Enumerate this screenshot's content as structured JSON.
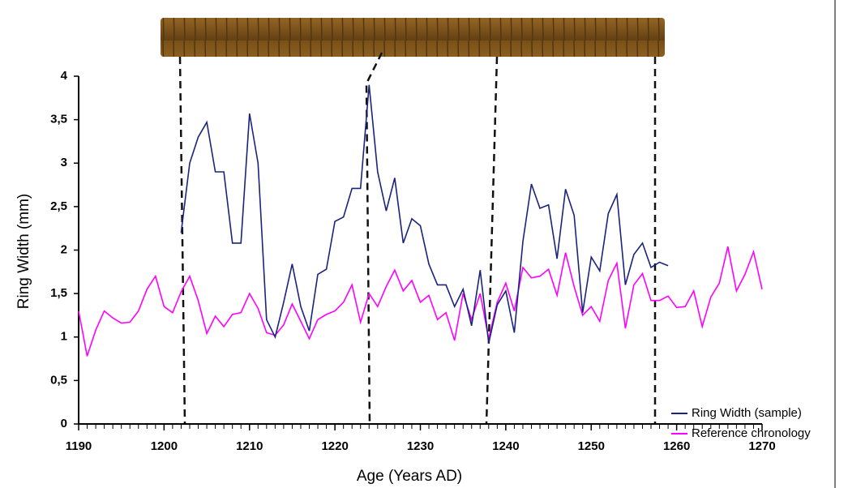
{
  "chart_data": {
    "type": "line",
    "y_label": "Ring Width (mm)",
    "x_label": "Age (Years AD)",
    "xlim": [
      1190,
      1270
    ],
    "xticks": [
      1190,
      1200,
      1210,
      1220,
      1230,
      1240,
      1250,
      1260,
      1270
    ],
    "ylim": [
      0,
      4
    ],
    "yticks": [
      0,
      {
        "value": 0.5,
        "label": "0,5"
      },
      1,
      {
        "value": 1.5,
        "label": "1,5"
      },
      2,
      {
        "value": 2.5,
        "label": "2,5"
      },
      3,
      {
        "value": 3.5,
        "label": "3,5"
      },
      4
    ],
    "legend": "lower right",
    "series": [
      {
        "name": "Ring Width (sample)",
        "color": "#1a237e",
        "x": [
          1202,
          1203,
          1204,
          1205,
          1206,
          1207,
          1208,
          1209,
          1210,
          1211,
          1212,
          1213,
          1214,
          1215,
          1216,
          1217,
          1218,
          1219,
          1220,
          1221,
          1222,
          1223,
          1224,
          1225,
          1226,
          1227,
          1228,
          1229,
          1230,
          1231,
          1232,
          1233,
          1234,
          1235,
          1236,
          1237,
          1238,
          1239,
          1240,
          1241,
          1242,
          1243,
          1244,
          1245,
          1246,
          1247,
          1248,
          1249,
          1250,
          1251,
          1252,
          1253,
          1254,
          1255,
          1256,
          1257,
          1258,
          1259
        ],
        "values": [
          2.2,
          3.0,
          3.3,
          3.47,
          2.9,
          2.9,
          2.08,
          2.08,
          3.57,
          3.0,
          1.2,
          1.0,
          1.4,
          1.84,
          1.35,
          1.07,
          1.72,
          1.78,
          2.33,
          2.38,
          2.71,
          2.71,
          3.9,
          2.9,
          2.45,
          2.83,
          2.08,
          2.36,
          2.28,
          1.84,
          1.6,
          1.6,
          1.35,
          1.55,
          1.13,
          1.77,
          0.93,
          1.37,
          1.53,
          1.05,
          2.1,
          2.76,
          2.48,
          2.52,
          1.9,
          2.7,
          2.4,
          1.28,
          1.92,
          1.76,
          2.42,
          2.64,
          1.6,
          1.95,
          2.08,
          1.8,
          1.86,
          1.82
        ]
      },
      {
        "name": "Reference chronology",
        "color": "#ff00ff",
        "x": [
          1190,
          1191,
          1192,
          1193,
          1194,
          1195,
          1196,
          1197,
          1198,
          1199,
          1200,
          1201,
          1202,
          1203,
          1204,
          1205,
          1206,
          1207,
          1208,
          1209,
          1210,
          1211,
          1212,
          1213,
          1214,
          1215,
          1216,
          1217,
          1218,
          1219,
          1220,
          1221,
          1222,
          1223,
          1224,
          1225,
          1226,
          1227,
          1228,
          1229,
          1230,
          1231,
          1232,
          1233,
          1234,
          1235,
          1236,
          1237,
          1238,
          1239,
          1240,
          1241,
          1242,
          1243,
          1244,
          1245,
          1246,
          1247,
          1248,
          1249,
          1250,
          1251,
          1252,
          1253,
          1254,
          1255,
          1256,
          1257,
          1258,
          1259,
          1260,
          1261,
          1262,
          1263,
          1264,
          1265,
          1266,
          1267,
          1268,
          1269,
          1270
        ],
        "values": [
          1.3,
          0.78,
          1.08,
          1.3,
          1.22,
          1.16,
          1.17,
          1.3,
          1.55,
          1.7,
          1.35,
          1.28,
          1.52,
          1.7,
          1.42,
          1.04,
          1.24,
          1.12,
          1.26,
          1.28,
          1.5,
          1.33,
          1.05,
          1.02,
          1.14,
          1.38,
          1.18,
          0.98,
          1.2,
          1.26,
          1.3,
          1.4,
          1.6,
          1.17,
          1.5,
          1.35,
          1.58,
          1.77,
          1.53,
          1.65,
          1.4,
          1.48,
          1.2,
          1.28,
          0.96,
          1.5,
          1.2,
          1.5,
          0.98,
          1.4,
          1.62,
          1.3,
          1.8,
          1.68,
          1.7,
          1.78,
          1.48,
          1.97,
          1.58,
          1.25,
          1.35,
          1.18,
          1.65,
          1.85,
          1.1,
          1.6,
          1.73,
          1.42,
          1.42,
          1.47,
          1.34,
          1.35,
          1.53,
          1.12,
          1.46,
          1.62,
          2.04,
          1.53,
          1.72,
          1.98,
          1.55
        ]
      }
    ]
  }
}
